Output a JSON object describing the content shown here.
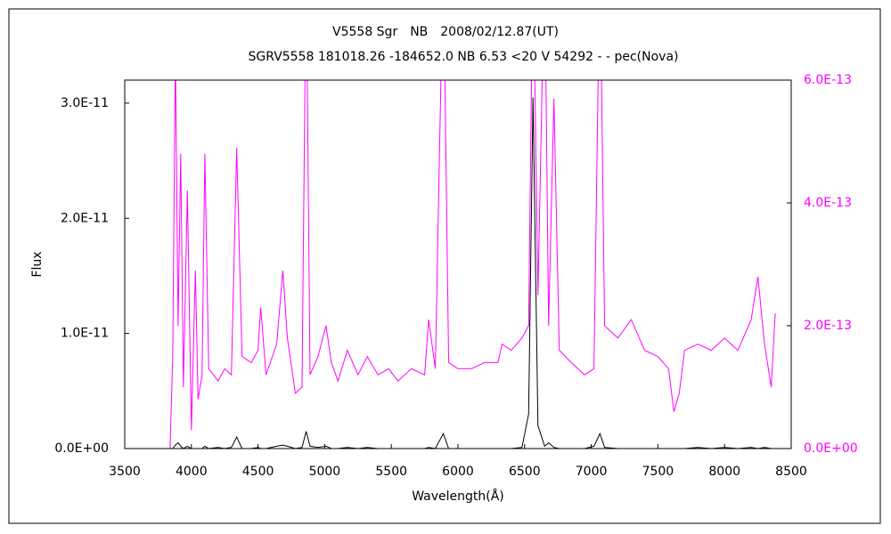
{
  "chart_data": {
    "type": "line",
    "title": "V5558 Sgr　NB　2008/02/12.87(UT)",
    "subtitle": "SGRV5558 181018.26 -184652.0 NB 6.53 <20 V 54292 - - pec(Nova)",
    "x_label": "Wavelength(Å)",
    "y_label": "Flux",
    "xlim": [
      3500,
      8500
    ],
    "xticks": [
      3500,
      4000,
      4500,
      5000,
      5500,
      6000,
      6500,
      7000,
      7500,
      8000,
      8500
    ],
    "ylim": [
      0,
      3.2e-11
    ],
    "yticks": [
      {
        "value": 0,
        "label": "0.0E+00"
      },
      {
        "value": 1e-11,
        "label": "1.0E-11"
      },
      {
        "value": 2e-11,
        "label": "2.0E-11"
      },
      {
        "value": 3e-11,
        "label": "3.0E-11"
      }
    ],
    "y2lim": [
      0,
      6e-13
    ],
    "y2ticks": [
      {
        "value": 0,
        "label": "0.0E+00"
      },
      {
        "value": 2e-13,
        "label": "2.0E-13"
      },
      {
        "value": 4e-13,
        "label": "4.0E-13"
      },
      {
        "value": 6e-13,
        "label": "6.0E-13"
      }
    ],
    "x": [
      3840,
      3860,
      3880,
      3900,
      3920,
      3940,
      3970,
      4000,
      4030,
      4050,
      4080,
      4101,
      4130,
      4200,
      4250,
      4300,
      4340,
      4380,
      4450,
      4500,
      4520,
      4560,
      4640,
      4686,
      4720,
      4780,
      4830,
      4861,
      4890,
      4950,
      5010,
      5050,
      5100,
      5170,
      5250,
      5320,
      5400,
      5480,
      5550,
      5650,
      5750,
      5780,
      5830,
      5890,
      5930,
      6000,
      6100,
      6200,
      6300,
      6330,
      6400,
      6480,
      6530,
      6563,
      6600,
      6650,
      6680,
      6720,
      6760,
      6850,
      6950,
      7020,
      7065,
      7100,
      7200,
      7300,
      7400,
      7500,
      7580,
      7620,
      7660,
      7700,
      7800,
      7900,
      8000,
      8100,
      8200,
      8250,
      8300,
      8350,
      8380
    ],
    "series": [
      {
        "color": "#000000",
        "values": [
          0,
          0,
          3e-13,
          5e-13,
          2e-13,
          0,
          2e-13,
          0,
          0,
          0,
          0,
          2e-13,
          0,
          1e-13,
          0,
          1e-13,
          1e-12,
          0,
          0,
          1e-13,
          0,
          0,
          2e-13,
          3e-13,
          2e-13,
          0,
          1e-13,
          1.5e-12,
          2e-13,
          1e-13,
          2e-13,
          0,
          0,
          1e-13,
          0,
          1e-13,
          0,
          0,
          0,
          0,
          0,
          1e-13,
          0,
          1.3e-12,
          0,
          0,
          0,
          0,
          0,
          0,
          0,
          1e-13,
          3e-12,
          3.05e-11,
          2e-12,
          2e-13,
          5e-13,
          1e-13,
          0,
          0,
          0,
          2e-13,
          1.3e-12,
          1e-13,
          0,
          0,
          0,
          0,
          0,
          0,
          0,
          0,
          1e-13,
          0,
          1e-13,
          0,
          1e-13,
          0,
          1e-13,
          0,
          0
        ]
      },
      {
        "color": "#ff00ff",
        "axis": "y2",
        "values": [
          0,
          1.5e-13,
          6.5e-13,
          2e-13,
          4.8e-13,
          1e-13,
          4.2e-13,
          3e-14,
          2.9e-13,
          8e-14,
          1.2e-13,
          4.8e-13,
          1.3e-13,
          1.1e-13,
          1.3e-13,
          1.2e-13,
          4.9e-13,
          1.5e-13,
          1.4e-13,
          1.6e-13,
          2.3e-13,
          1.2e-13,
          1.7e-13,
          2.9e-13,
          1.8e-13,
          9e-14,
          1e-13,
          8e-13,
          1.2e-13,
          1.5e-13,
          2e-13,
          1.4e-13,
          1.1e-13,
          1.6e-13,
          1.2e-13,
          1.5e-13,
          1.2e-13,
          1.3e-13,
          1.1e-13,
          1.3e-13,
          1.2e-13,
          2.1e-13,
          1.3e-13,
          8e-13,
          1.4e-13,
          1.3e-13,
          1.3e-13,
          1.4e-13,
          1.4e-13,
          1.7e-13,
          1.6e-13,
          1.8e-13,
          2e-13,
          8e-13,
          2.5e-13,
          8e-13,
          2e-13,
          5.7e-13,
          1.6e-13,
          1.4e-13,
          1.2e-13,
          1.3e-13,
          8e-13,
          2e-13,
          1.8e-13,
          2.1e-13,
          1.6e-13,
          1.5e-13,
          1.3e-13,
          6e-14,
          9e-14,
          1.6e-13,
          1.7e-13,
          1.6e-13,
          1.8e-13,
          1.6e-13,
          2.1e-13,
          2.8e-13,
          1.7e-13,
          1e-13,
          2.2e-13
        ]
      }
    ]
  }
}
